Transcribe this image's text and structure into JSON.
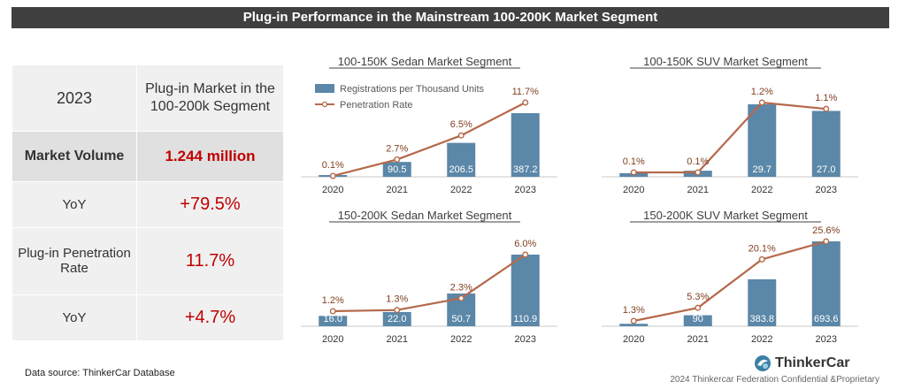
{
  "header": {
    "title": "Plug-in Performance in the Mainstream 100-200K Market Segment"
  },
  "summary": {
    "year": "2023",
    "segment_label": "Plug-in Market in the 100-200k Segment",
    "rows": [
      {
        "label": "Market Volume",
        "value": "1.244 million"
      },
      {
        "label": "YoY",
        "value": "+79.5%"
      },
      {
        "label": "Plug-in Penetration Rate",
        "value": "11.7%"
      },
      {
        "label": "YoY",
        "value": "+4.7%"
      }
    ]
  },
  "legend": {
    "bar": "Registrations per Thousand Units",
    "line": "Penetration Rate"
  },
  "footer": {
    "source": "Data source: ThinkerCar Database",
    "logo": "ThinkerCar",
    "note": "2024 Thinkercar Federation Confidential &Proprietary"
  },
  "colors": {
    "bar": "#5b87a8",
    "line": "#b5694a",
    "title_bar": "#404040",
    "highlight": "#c00000"
  },
  "chart_data": [
    {
      "type": "bar",
      "title": "100-150K Sedan Market Segment",
      "categories": [
        "2020",
        "2021",
        "2022",
        "2023"
      ],
      "series": [
        {
          "name": "Registrations per Thousand Units",
          "values": [
            4,
            90.5,
            206.5,
            387.2
          ],
          "labels": [
            "",
            "90.5",
            "206.5",
            "387.2"
          ]
        },
        {
          "name": "Penetration Rate",
          "type": "line",
          "values": [
            0.1,
            2.7,
            6.5,
            11.7
          ],
          "labels": [
            "0.1%",
            "2.7%",
            "6.5%",
            "11.7%"
          ]
        }
      ]
    },
    {
      "type": "bar",
      "title": "100-150K SUV Market Segment",
      "categories": [
        "2020",
        "2021",
        "2022",
        "2023"
      ],
      "series": [
        {
          "name": "Registrations per Thousand Units",
          "values": [
            1.5,
            2.5,
            29.7,
            27.0
          ],
          "labels": [
            "",
            "",
            "29.7",
            "27.0"
          ]
        },
        {
          "name": "Penetration Rate",
          "type": "line",
          "values": [
            0.1,
            0.1,
            1.2,
            1.1
          ],
          "labels": [
            "0.1%",
            "0.1%",
            "1.2%",
            "1.1%"
          ]
        }
      ]
    },
    {
      "type": "bar",
      "title": "150-200K Sedan Market Segment",
      "categories": [
        "2020",
        "2021",
        "2022",
        "2023"
      ],
      "series": [
        {
          "name": "Registrations per Thousand Units",
          "values": [
            16.0,
            22.0,
            50.7,
            110.9
          ],
          "labels": [
            "16.0",
            "22.0",
            "50.7",
            "110.9"
          ]
        },
        {
          "name": "Penetration Rate",
          "type": "line",
          "values": [
            1.2,
            1.3,
            2.3,
            6.0
          ],
          "labels": [
            "1.2%",
            "1.3%",
            "2.3%",
            "6.0%"
          ]
        }
      ]
    },
    {
      "type": "bar",
      "title": "150-200K SUV Market Segment",
      "categories": [
        "2020",
        "2021",
        "2022",
        "2023"
      ],
      "series": [
        {
          "name": "Registrations per Thousand Units",
          "values": [
            20,
            90,
            383.8,
            693.6
          ],
          "labels": [
            "",
            "90",
            "383.8",
            "693.6"
          ]
        },
        {
          "name": "Penetration Rate",
          "type": "line",
          "values": [
            1.3,
            5.3,
            20.1,
            25.6
          ],
          "labels": [
            "1.3%",
            "5.3%",
            "20.1%",
            "25.6%"
          ]
        }
      ]
    }
  ]
}
